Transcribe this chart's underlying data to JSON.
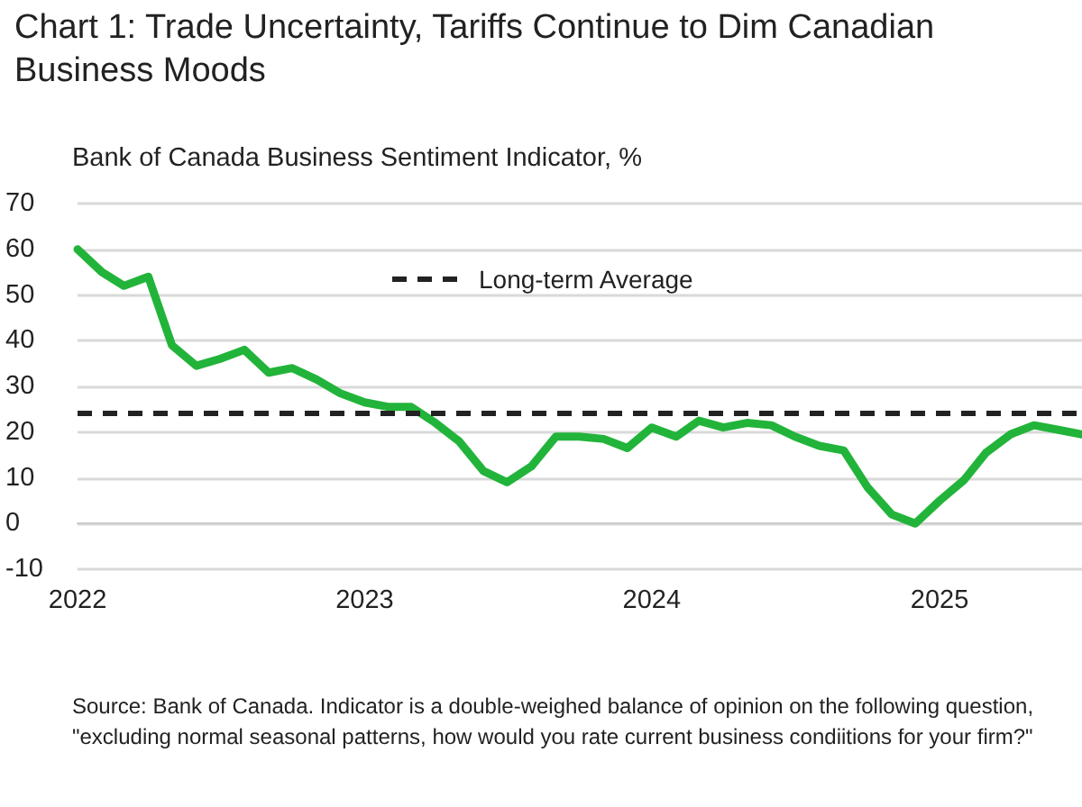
{
  "chart_data": {
    "type": "line",
    "title": "Chart 1: Trade Uncertainty, Tariffs Continue to Dim Canadian Business Moods",
    "ylabel": "Bank of Canada Business Sentiment Indicator, %",
    "x": [
      "2022-01",
      "2022-02",
      "2022-03",
      "2022-04",
      "2022-05",
      "2022-06",
      "2022-07",
      "2022-08",
      "2022-09",
      "2022-10",
      "2022-11",
      "2022-12",
      "2023-01",
      "2023-02",
      "2023-03",
      "2023-04",
      "2023-05",
      "2023-06",
      "2023-07",
      "2023-08",
      "2023-09",
      "2023-10",
      "2023-11",
      "2023-12",
      "2024-01",
      "2024-02",
      "2024-03",
      "2024-04",
      "2024-05",
      "2024-06",
      "2024-07",
      "2024-08",
      "2024-09",
      "2024-10",
      "2024-11",
      "2024-12",
      "2025-01",
      "2025-02",
      "2025-03",
      "2025-04",
      "2025-05",
      "2025-06",
      "2025-07"
    ],
    "series": [
      {
        "color": "#22b43a",
        "values": [
          60,
          55,
          52,
          54,
          39,
          34.5,
          36,
          38,
          33,
          34,
          31.5,
          28.5,
          26.5,
          25.5,
          25.5,
          22,
          18,
          11.5,
          9,
          12.5,
          19,
          19,
          18.5,
          16.5,
          21,
          19,
          22.5,
          21,
          22,
          21.5,
          19,
          17,
          16,
          8,
          2,
          0,
          5,
          9.5,
          15.5,
          19.5,
          21.5,
          20.5,
          19.5
        ]
      }
    ],
    "ref_lines": [
      {
        "axis": "y",
        "value": 24,
        "label": "Long-term Average",
        "color": "#222222",
        "line_style": "dashed"
      }
    ],
    "xlim": [
      "2022-01",
      "2025-07"
    ],
    "xticks": [
      "2022",
      "2023",
      "2024",
      "2025"
    ],
    "ylim": [
      -10,
      70
    ],
    "yticks": [
      -10,
      0,
      10,
      20,
      30,
      40,
      50,
      60,
      70
    ],
    "grid": "y",
    "legend": "top",
    "marker": "none",
    "line_style": "solid",
    "annotations": [
      "Source: Bank of Canada. Indicator is a double-weighed balance of opinion on the following question, \"excluding normal seasonal patterns, how would you rate current business condiitions for your firm?\""
    ]
  }
}
